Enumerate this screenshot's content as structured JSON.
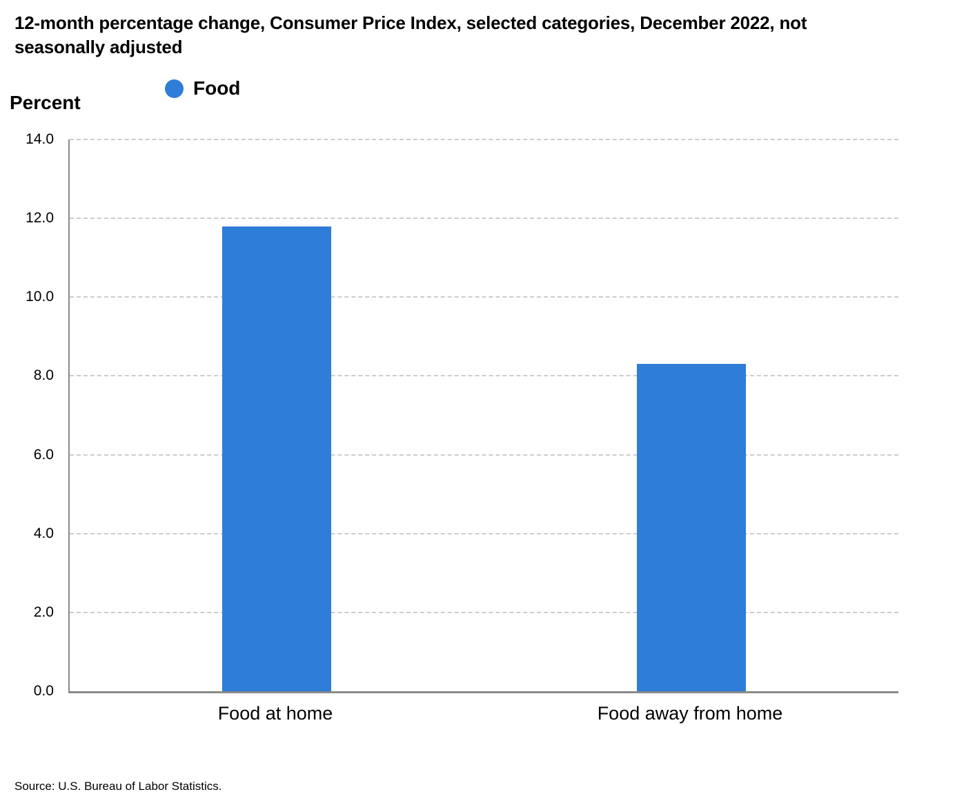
{
  "header": {
    "title_lines": [
      "12-month percentage change, Consumer Price Index, selected categories, December 2022, not",
      "seasonally adjusted"
    ]
  },
  "legend": {
    "items": [
      {
        "label": "Food",
        "color": "#2E7DD8",
        "icon": "circle"
      }
    ]
  },
  "axis": {
    "y_title": "Percent"
  },
  "footer": {
    "source": "Source: U.S. Bureau of Labor Statistics."
  },
  "colors": {
    "bar": "#2E7DD8",
    "gridline": "#cccccc",
    "axis_line": "#8a8a8a",
    "text": "#000000"
  },
  "chart_data": {
    "type": "bar",
    "title": "12-month percentage change, Consumer Price Index, selected categories, December 2022, not seasonally adjusted",
    "categories": [
      "Food at home",
      "Food away from home"
    ],
    "series": [
      {
        "name": "Food",
        "values": [
          11.8,
          8.3
        ],
        "color": "#2E7DD8"
      }
    ],
    "xlabel": "",
    "ylabel": "Percent",
    "ylim": [
      0,
      14
    ],
    "ytick_step": 2,
    "ytick_decimals": 1,
    "grid": "horizontal-dashed",
    "legend_position": "top-left",
    "source": "Source: U.S. Bureau of Labor Statistics."
  }
}
